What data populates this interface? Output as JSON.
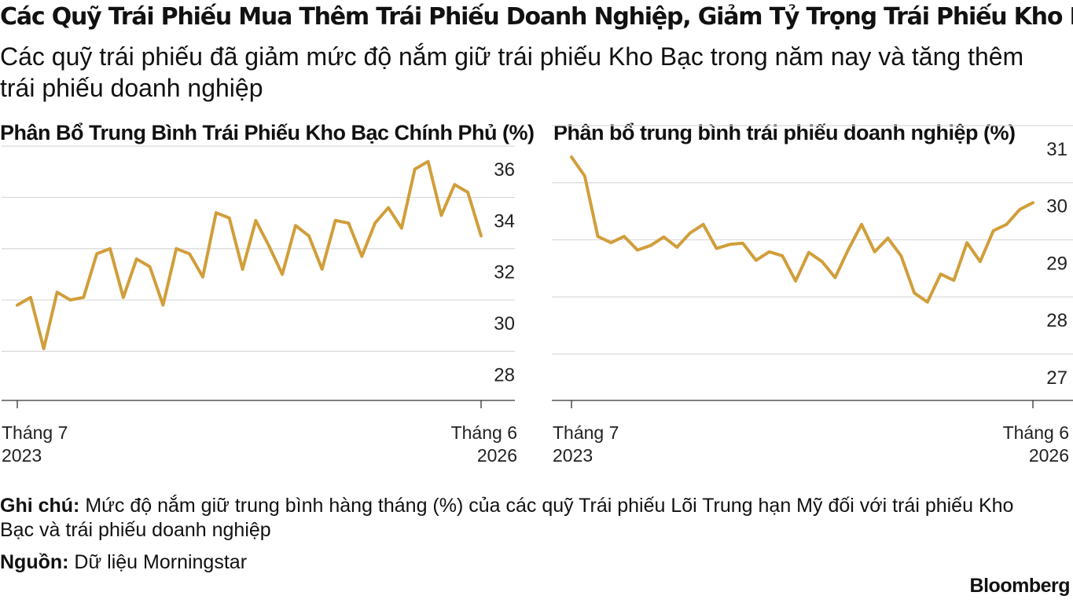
{
  "title": "Các Quỹ Trái Phiếu Mua Thêm Trái Phiếu Doanh Nghiệp, Giảm Tỷ Trọng Trái Phiếu Kho Bạc",
  "subtitle": "Các quỹ trái phiếu đã giảm mức độ nắm giữ trái phiếu Kho Bạc trong năm nay và tăng thêm trái phiếu doanh nghiệp",
  "note": {
    "label": "Ghi chú:",
    "text": "Mức độ nắm giữ trung bình hàng tháng (%) của các quỹ Trái phiếu Lõi Trung hạn Mỹ đối với trái phiếu Kho Bạc và trái phiếu doanh nghiệp"
  },
  "source": {
    "label": "Nguồn:",
    "text": "Dữ liệu Morningstar"
  },
  "brand": "Bloomberg",
  "line_color": "#D19E3A",
  "chart_data": [
    {
      "type": "line",
      "title": "Phân Bổ Trung Bình Trái Phiếu Kho Bạc Chính Phủ (%)",
      "x_start_label": [
        "Tháng 7",
        "2023"
      ],
      "x_end_label": [
        "Tháng 6",
        "2026"
      ],
      "ylim": [
        27,
        36.8
      ],
      "yticks": [
        28,
        30,
        32,
        34,
        36
      ],
      "grid": true,
      "values": [
        29.8,
        30.1,
        28.1,
        30.3,
        30.0,
        30.1,
        31.8,
        32.0,
        30.1,
        31.6,
        31.3,
        29.8,
        32.0,
        31.8,
        30.9,
        33.4,
        33.2,
        31.2,
        33.1,
        32.1,
        31.0,
        32.9,
        32.5,
        31.2,
        33.1,
        33.0,
        31.7,
        33.0,
        33.6,
        32.8,
        35.1,
        35.4,
        33.3,
        34.5,
        34.2,
        32.5
      ],
      "grid_lines": [
        28,
        30,
        32,
        34,
        36
      ]
    },
    {
      "type": "line",
      "title": "Phân bổ trung bình trái phiếu doanh nghiệp (%)",
      "x_start_label": [
        "Tháng 7",
        "2023"
      ],
      "x_end_label": [
        "Tháng 6",
        "2026"
      ],
      "ylim": [
        26.6,
        31
      ],
      "yticks": [
        27,
        28,
        29,
        30,
        31
      ],
      "grid": true,
      "values": [
        30.45,
        30.12,
        29.06,
        28.95,
        29.06,
        28.82,
        28.9,
        29.05,
        28.87,
        29.12,
        29.27,
        28.85,
        28.92,
        28.94,
        28.64,
        28.79,
        28.72,
        28.28,
        28.78,
        28.62,
        28.34,
        28.83,
        29.27,
        28.79,
        29.03,
        28.72,
        28.07,
        27.91,
        28.4,
        28.29,
        28.95,
        28.62,
        29.16,
        29.27,
        29.53,
        29.65
      ]
    }
  ]
}
